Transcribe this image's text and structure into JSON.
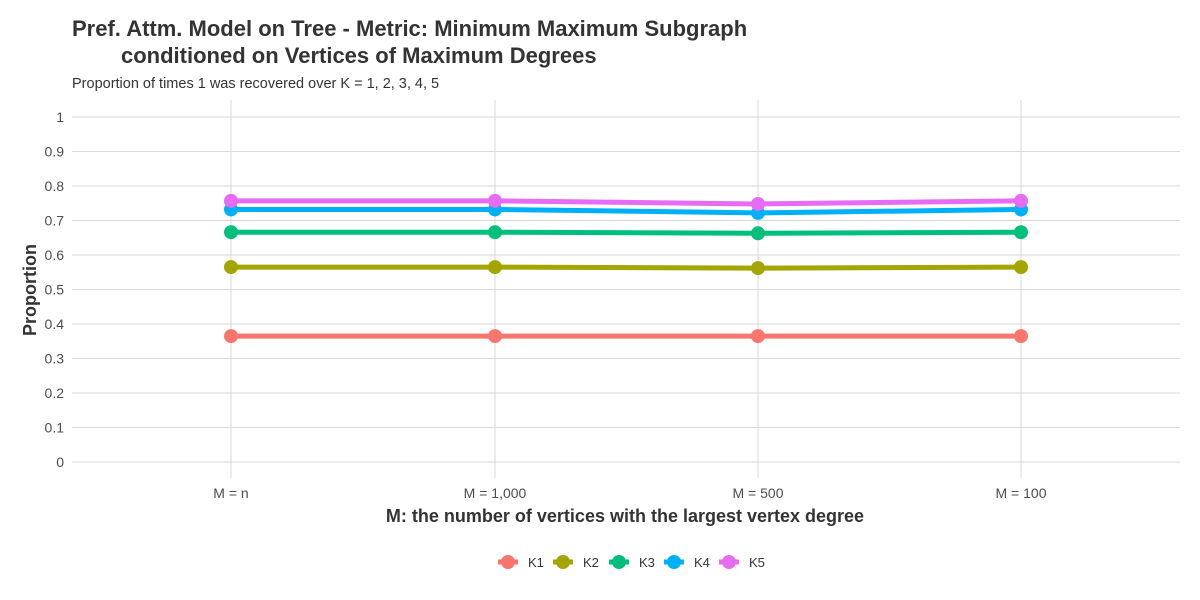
{
  "chart_data": {
    "type": "line",
    "title_line1": "Pref. Attm. Model on Tree - Metric: Minimum Maximum Subgraph",
    "title_line2": "conditioned on Vertices of Maximum Degrees",
    "subtitle": "Proportion of times 1 was recovered over K = 1, 2, 3, 4, 5",
    "xlabel": "M: the number of vertices with the largest vertex degree",
    "ylabel": "Proportion",
    "categories": [
      "M = n",
      "M = 1,000",
      "M = 500",
      "M = 100"
    ],
    "ylim": [
      0,
      1
    ],
    "yticks": [
      0,
      0.1,
      0.2,
      0.3,
      0.4,
      0.5,
      0.6,
      0.7,
      0.8,
      0.9,
      1
    ],
    "ytick_labels": [
      "0",
      "0.1",
      "0.2",
      "0.3",
      "0.4",
      "0.5",
      "0.6",
      "0.7",
      "0.8",
      "0.9",
      "1"
    ],
    "grid": true,
    "legend_position": "bottom",
    "series": [
      {
        "name": "K1",
        "color": "#F8766D",
        "values": [
          0.365,
          0.365,
          0.365,
          0.365
        ]
      },
      {
        "name": "K2",
        "color": "#A3A500",
        "values": [
          0.565,
          0.565,
          0.562,
          0.565
        ]
      },
      {
        "name": "K3",
        "color": "#00BF7D",
        "values": [
          0.666,
          0.666,
          0.663,
          0.666
        ]
      },
      {
        "name": "K4",
        "color": "#00B0F6",
        "values": [
          0.732,
          0.732,
          0.722,
          0.732
        ]
      },
      {
        "name": "K5",
        "color": "#E76BF3",
        "values": [
          0.757,
          0.757,
          0.748,
          0.757
        ]
      }
    ]
  }
}
